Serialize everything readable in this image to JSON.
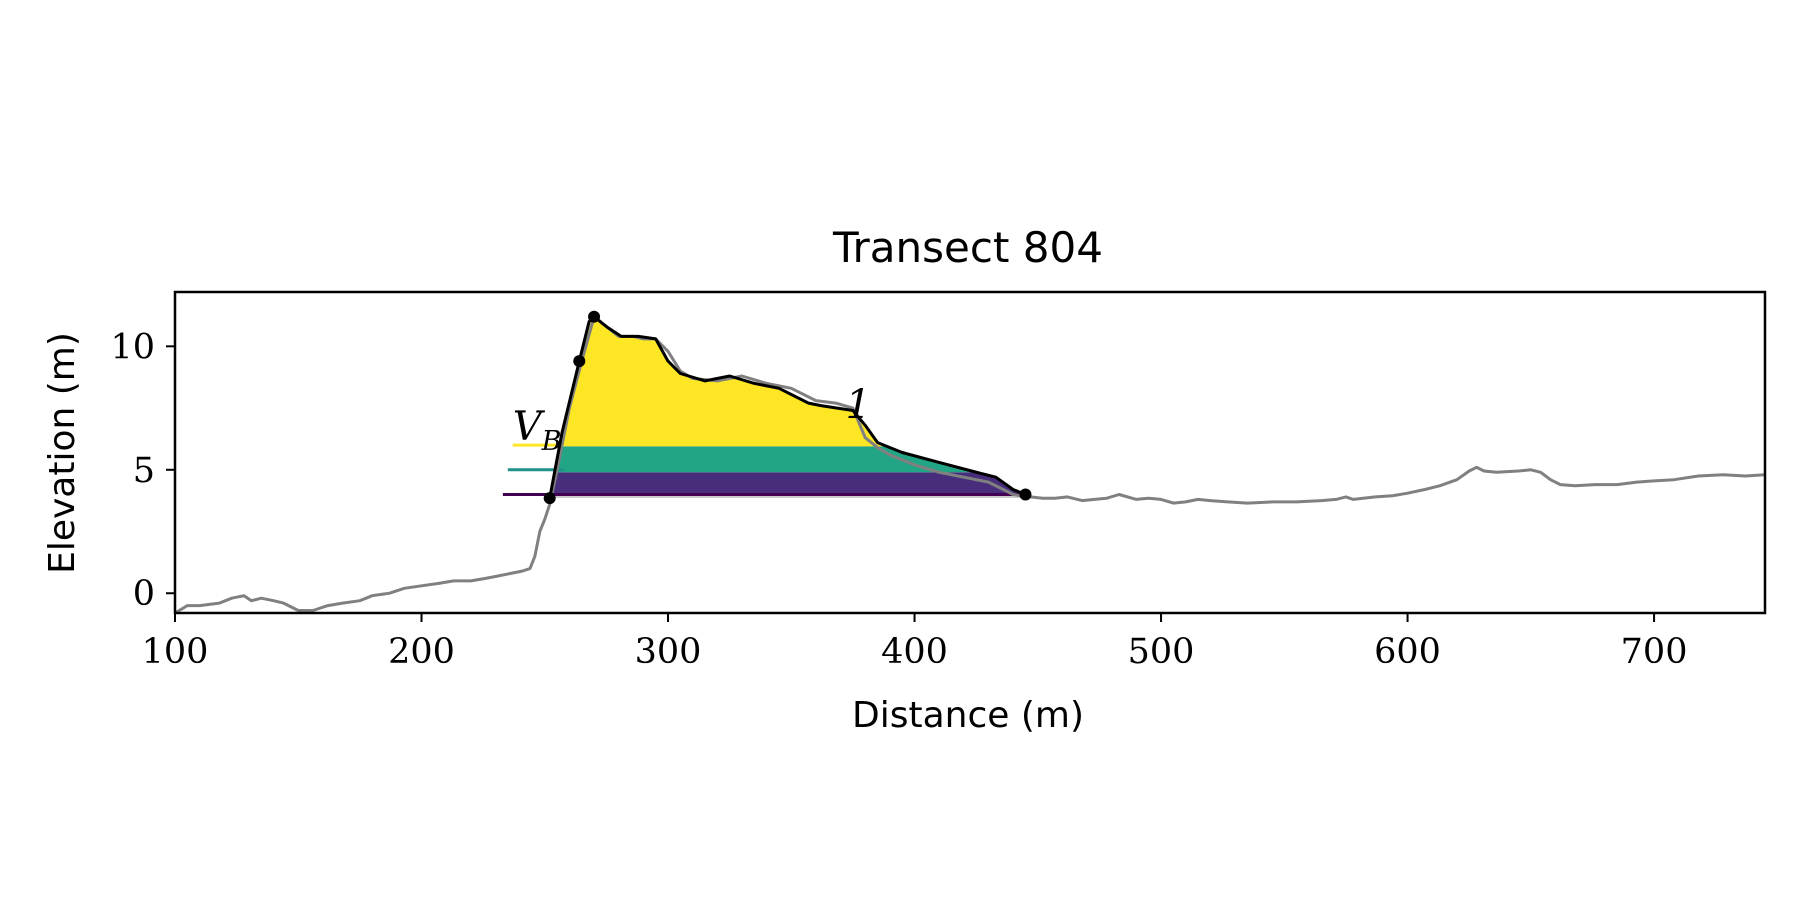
{
  "chart_data": {
    "type": "area",
    "title": "Transect 804",
    "xlabel": "Distance (m)",
    "ylabel": "Elevation (m)",
    "xlim": [
      100,
      745
    ],
    "ylim": [
      -0.8,
      12.2
    ],
    "xticks": [
      100,
      200,
      300,
      400,
      500,
      600,
      700
    ],
    "yticks": [
      0,
      5,
      10
    ],
    "grid": false,
    "profile": {
      "color": "#808080",
      "x": [
        100,
        105,
        110,
        118,
        123,
        128,
        131,
        135,
        140,
        144,
        150,
        156,
        162,
        168,
        175,
        180,
        187,
        193,
        200,
        207,
        213,
        220,
        226,
        231,
        236,
        241,
        244,
        246,
        248,
        250,
        252,
        255,
        260,
        265,
        270,
        275,
        280,
        286,
        290,
        295,
        300,
        305,
        310,
        320,
        330,
        340,
        350,
        360,
        368,
        375,
        380,
        385,
        390,
        400,
        410,
        420,
        430,
        436,
        440,
        443,
        447,
        452,
        457,
        462,
        468,
        473,
        478,
        483,
        490,
        495,
        500,
        505,
        510,
        515,
        520,
        527,
        535,
        545,
        555,
        565,
        571,
        575,
        578,
        582,
        587,
        594,
        600,
        607,
        613,
        620,
        625,
        628,
        631,
        636,
        645,
        650,
        654,
        658,
        662,
        668,
        676,
        685,
        693,
        700,
        708,
        718,
        728,
        737,
        745
      ],
      "y": [
        -0.8,
        -0.5,
        -0.5,
        -0.4,
        -0.2,
        -0.1,
        -0.3,
        -0.2,
        -0.3,
        -0.4,
        -0.7,
        -0.7,
        -0.5,
        -0.4,
        -0.3,
        -0.1,
        0.0,
        0.2,
        0.3,
        0.4,
        0.5,
        0.5,
        0.6,
        0.7,
        0.8,
        0.9,
        1.0,
        1.5,
        2.5,
        3.0,
        3.6,
        5.0,
        7.5,
        9.4,
        11.2,
        10.8,
        10.4,
        10.4,
        10.3,
        10.3,
        9.8,
        9.0,
        8.7,
        8.6,
        8.8,
        8.5,
        8.3,
        7.8,
        7.7,
        7.5,
        6.3,
        5.9,
        5.6,
        5.2,
        4.9,
        4.7,
        4.5,
        4.2,
        4.0,
        3.95,
        3.9,
        3.85,
        3.85,
        3.9,
        3.75,
        3.8,
        3.85,
        4.0,
        3.8,
        3.85,
        3.8,
        3.65,
        3.7,
        3.8,
        3.75,
        3.7,
        3.65,
        3.7,
        3.7,
        3.75,
        3.8,
        3.9,
        3.8,
        3.85,
        3.9,
        3.95,
        4.05,
        4.2,
        4.35,
        4.6,
        4.95,
        5.1,
        4.95,
        4.9,
        4.95,
        5.0,
        4.9,
        4.6,
        4.4,
        4.35,
        4.4,
        4.4,
        4.5,
        4.55,
        4.6,
        4.75,
        4.8,
        4.75,
        4.8
      ]
    },
    "dune_outline": {
      "color": "#000000",
      "x": [
        252,
        257,
        264,
        268,
        270,
        275,
        281,
        288,
        295,
        300,
        305,
        315,
        325,
        335,
        345,
        357,
        362,
        375,
        380,
        385,
        395,
        410,
        427,
        433,
        440,
        445
      ],
      "y": [
        3.85,
        6.5,
        9.4,
        11.0,
        11.2,
        10.8,
        10.4,
        10.4,
        10.3,
        9.4,
        8.9,
        8.6,
        8.8,
        8.5,
        8.3,
        7.7,
        7.6,
        7.4,
        6.8,
        6.1,
        5.7,
        5.3,
        4.85,
        4.7,
        4.2,
        4.0
      ]
    },
    "dune_points": {
      "color": "#000000",
      "x": [
        252,
        264,
        270,
        445
      ],
      "y": [
        3.85,
        9.4,
        11.2,
        4.0
      ]
    },
    "baseline": {
      "y": 3.9,
      "color": "#cccccc"
    },
    "volume_bands": [
      {
        "y_bottom": 3.9,
        "y_top": 4.9,
        "color": "#472d7b"
      },
      {
        "y_bottom": 4.9,
        "y_top": 5.95,
        "color": "#21a585"
      },
      {
        "y_bottom": 5.95,
        "y_top": 12.0,
        "color": "#fde725"
      }
    ],
    "band_level_lines": [
      {
        "y": 4.0,
        "x0": 233,
        "x1": 445,
        "color": "#440154"
      },
      {
        "y": 5.0,
        "x0": 235,
        "x1": 258,
        "color": "#21918c"
      },
      {
        "y": 6.0,
        "x0": 237,
        "x1": 256,
        "color": "#fde725"
      }
    ],
    "annotations": [
      {
        "text": "V",
        "sub": "B",
        "x": 237,
        "y": 6.2
      },
      {
        "text": "1",
        "x": 372,
        "y": 7.1
      }
    ]
  }
}
